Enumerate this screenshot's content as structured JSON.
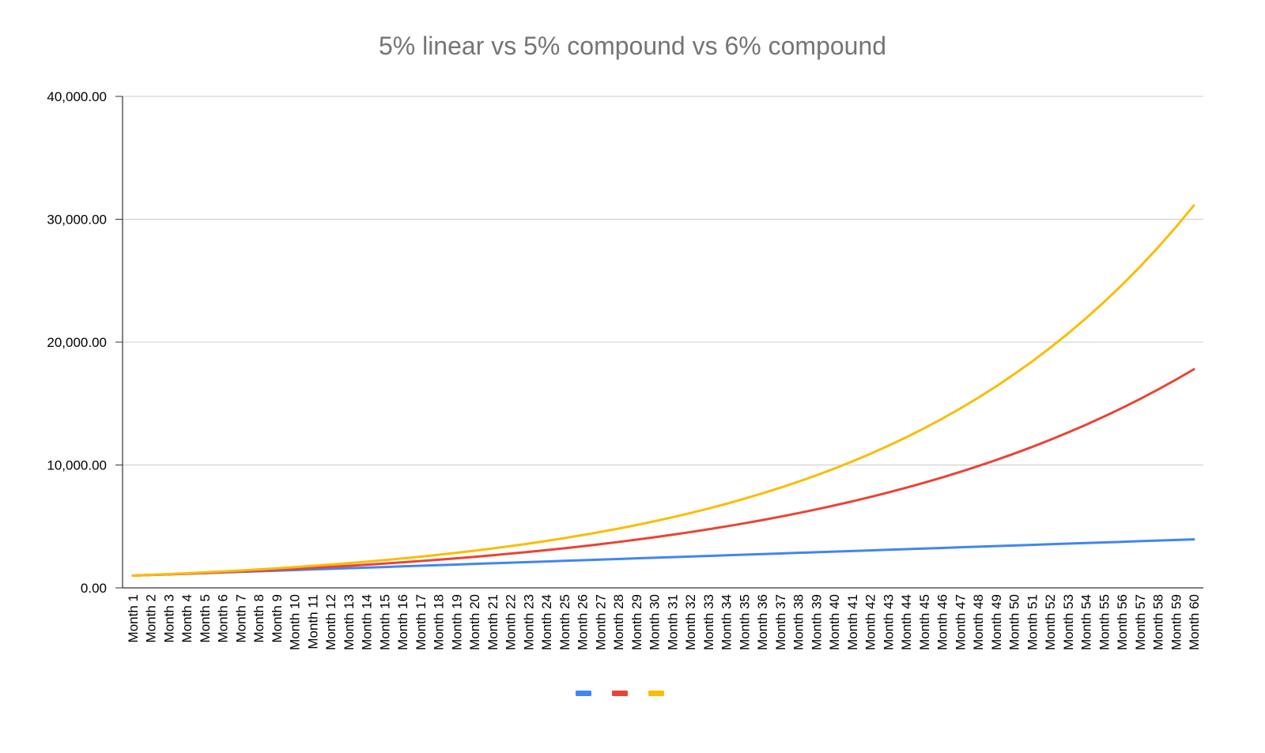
{
  "chart_data": {
    "type": "line",
    "title": "5% linear vs 5% compound vs 6% compound",
    "xlabel": "",
    "ylabel": "",
    "categories": [
      "Month 1",
      "Month 2",
      "Month 3",
      "Month 4",
      "Month 5",
      "Month 6",
      "Month 7",
      "Month 8",
      "Month 9",
      "Month 10",
      "Month 11",
      "Month 12",
      "Month 13",
      "Month 14",
      "Month 15",
      "Month 16",
      "Month 17",
      "Month 18",
      "Month 19",
      "Month 20",
      "Month 21",
      "Month 22",
      "Month 23",
      "Month 24",
      "Month 25",
      "Month 26",
      "Month 27",
      "Month 28",
      "Month 29",
      "Month 30",
      "Month 31",
      "Month 32",
      "Month 33",
      "Month 34",
      "Month 35",
      "Month 36",
      "Month 37",
      "Month 38",
      "Month 39",
      "Month 40",
      "Month 41",
      "Month 42",
      "Month 43",
      "Month 44",
      "Month 45",
      "Month 46",
      "Month 47",
      "Month 48",
      "Month 49",
      "Month 50",
      "Month 51",
      "Month 52",
      "Month 53",
      "Month 54",
      "Month 55",
      "Month 56",
      "Month 57",
      "Month 58",
      "Month 59",
      "Month 60"
    ],
    "ylim": [
      0,
      40000
    ],
    "yticks": [
      "0.00",
      "10,000.00",
      "20,000.00",
      "30,000.00",
      "40,000.00"
    ],
    "ytick_values": [
      0,
      10000,
      20000,
      30000,
      40000
    ],
    "grid": true,
    "legend": "bottom",
    "series": [
      {
        "color": "#4285f4",
        "values": [
          1000,
          1050,
          1100,
          1150,
          1200,
          1250,
          1300,
          1350,
          1400,
          1450,
          1500,
          1550,
          1600,
          1650,
          1700,
          1750,
          1800,
          1850,
          1900,
          1950,
          2000,
          2050,
          2100,
          2150,
          2200,
          2250,
          2300,
          2350,
          2400,
          2450,
          2500,
          2550,
          2600,
          2650,
          2700,
          2750,
          2800,
          2850,
          2900,
          2950,
          3000,
          3050,
          3100,
          3150,
          3200,
          3250,
          3300,
          3350,
          3400,
          3450,
          3500,
          3550,
          3600,
          3650,
          3700,
          3750,
          3800,
          3850,
          3900,
          3950
        ]
      },
      {
        "color": "#ea4335",
        "values": [
          1000,
          1050,
          1102.5,
          1157.63,
          1215.51,
          1276.28,
          1340.1,
          1407.1,
          1477.46,
          1551.33,
          1628.89,
          1710.34,
          1795.86,
          1885.65,
          1979.93,
          2078.93,
          2182.87,
          2292.02,
          2406.62,
          2526.95,
          2653.3,
          2785.96,
          2925.26,
          3071.52,
          3225.1,
          3386.35,
          3555.67,
          3733.46,
          3920.13,
          4116.14,
          4321.94,
          4538.04,
          4764.94,
          5003.19,
          5253.35,
          5516.02,
          5791.82,
          6081.41,
          6385.48,
          6704.75,
          7039.99,
          7391.99,
          7761.59,
          8149.67,
          8557.15,
          8985.01,
          9434.26,
          9905.97,
          10401.27,
          10921.33,
          11467.4,
          12040.77,
          12642.81,
          13274.95,
          13938.7,
          14635.63,
          15367.42,
          16135.79,
          16942.58,
          17789.71
        ]
      },
      {
        "color": "#fbbc04",
        "values": [
          1000,
          1060,
          1123.6,
          1191.02,
          1262.48,
          1338.23,
          1418.52,
          1503.63,
          1593.85,
          1689.48,
          1790.85,
          1898.3,
          2012.2,
          2132.93,
          2260.9,
          2396.56,
          2540.35,
          2692.77,
          2854.34,
          3025.6,
          3207.14,
          3399.56,
          3603.54,
          3819.75,
          4048.93,
          4291.87,
          4549.38,
          4822.35,
          5111.69,
          5418.39,
          5743.49,
          6088.1,
          6453.39,
          6840.59,
          7251.03,
          7686.09,
          8147.26,
          8636.09,
          9154.25,
          9703.51,
          10285.72,
          10902.86,
          11557.03,
          12250.45,
          12985.48,
          13764.61,
          14590.49,
          15465.92,
          16393.87,
          17377.5,
          18420.15,
          19525.36,
          20696.88,
          21938.69,
          23255.01,
          24650.31,
          26129.33,
          27697.09,
          29358.92,
          31120.45
        ]
      }
    ]
  }
}
